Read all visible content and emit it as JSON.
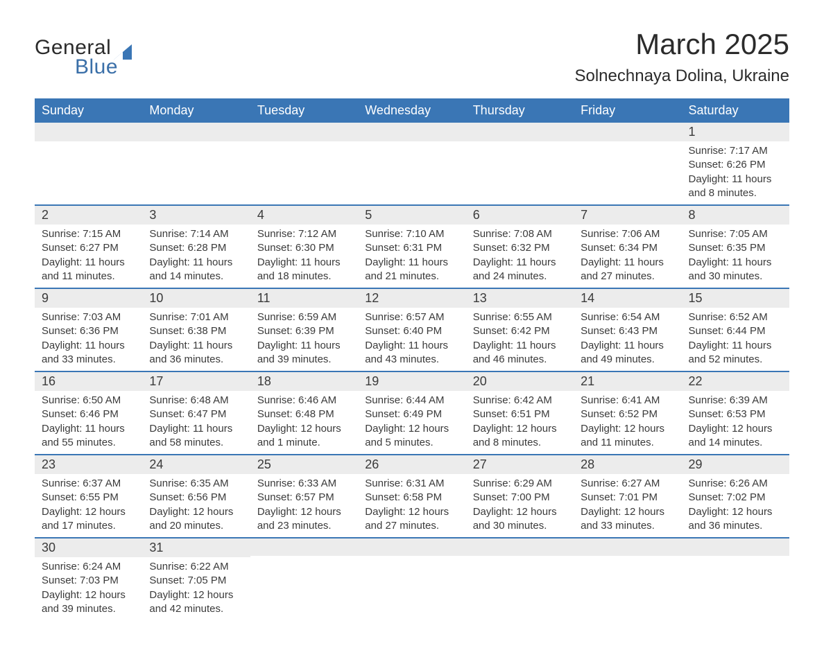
{
  "logo": {
    "general": "General",
    "blue": "Blue",
    "sail_color": "#3a76b5"
  },
  "title": "March 2025",
  "location": "Solnechnaya Dolina, Ukraine",
  "colors": {
    "header_bg": "#3a76b5",
    "header_text": "#ffffff",
    "daynum_bg": "#ececec",
    "row_border": "#3a76b5",
    "body_text": "#3a3a3a"
  },
  "day_labels": [
    "Sunday",
    "Monday",
    "Tuesday",
    "Wednesday",
    "Thursday",
    "Friday",
    "Saturday"
  ],
  "weeks": [
    [
      null,
      null,
      null,
      null,
      null,
      null,
      {
        "n": "1",
        "sr": "7:17 AM",
        "ss": "6:26 PM",
        "dl": "11 hours and 8 minutes."
      }
    ],
    [
      {
        "n": "2",
        "sr": "7:15 AM",
        "ss": "6:27 PM",
        "dl": "11 hours and 11 minutes."
      },
      {
        "n": "3",
        "sr": "7:14 AM",
        "ss": "6:28 PM",
        "dl": "11 hours and 14 minutes."
      },
      {
        "n": "4",
        "sr": "7:12 AM",
        "ss": "6:30 PM",
        "dl": "11 hours and 18 minutes."
      },
      {
        "n": "5",
        "sr": "7:10 AM",
        "ss": "6:31 PM",
        "dl": "11 hours and 21 minutes."
      },
      {
        "n": "6",
        "sr": "7:08 AM",
        "ss": "6:32 PM",
        "dl": "11 hours and 24 minutes."
      },
      {
        "n": "7",
        "sr": "7:06 AM",
        "ss": "6:34 PM",
        "dl": "11 hours and 27 minutes."
      },
      {
        "n": "8",
        "sr": "7:05 AM",
        "ss": "6:35 PM",
        "dl": "11 hours and 30 minutes."
      }
    ],
    [
      {
        "n": "9",
        "sr": "7:03 AM",
        "ss": "6:36 PM",
        "dl": "11 hours and 33 minutes."
      },
      {
        "n": "10",
        "sr": "7:01 AM",
        "ss": "6:38 PM",
        "dl": "11 hours and 36 minutes."
      },
      {
        "n": "11",
        "sr": "6:59 AM",
        "ss": "6:39 PM",
        "dl": "11 hours and 39 minutes."
      },
      {
        "n": "12",
        "sr": "6:57 AM",
        "ss": "6:40 PM",
        "dl": "11 hours and 43 minutes."
      },
      {
        "n": "13",
        "sr": "6:55 AM",
        "ss": "6:42 PM",
        "dl": "11 hours and 46 minutes."
      },
      {
        "n": "14",
        "sr": "6:54 AM",
        "ss": "6:43 PM",
        "dl": "11 hours and 49 minutes."
      },
      {
        "n": "15",
        "sr": "6:52 AM",
        "ss": "6:44 PM",
        "dl": "11 hours and 52 minutes."
      }
    ],
    [
      {
        "n": "16",
        "sr": "6:50 AM",
        "ss": "6:46 PM",
        "dl": "11 hours and 55 minutes."
      },
      {
        "n": "17",
        "sr": "6:48 AM",
        "ss": "6:47 PM",
        "dl": "11 hours and 58 minutes."
      },
      {
        "n": "18",
        "sr": "6:46 AM",
        "ss": "6:48 PM",
        "dl": "12 hours and 1 minute."
      },
      {
        "n": "19",
        "sr": "6:44 AM",
        "ss": "6:49 PM",
        "dl": "12 hours and 5 minutes."
      },
      {
        "n": "20",
        "sr": "6:42 AM",
        "ss": "6:51 PM",
        "dl": "12 hours and 8 minutes."
      },
      {
        "n": "21",
        "sr": "6:41 AM",
        "ss": "6:52 PM",
        "dl": "12 hours and 11 minutes."
      },
      {
        "n": "22",
        "sr": "6:39 AM",
        "ss": "6:53 PM",
        "dl": "12 hours and 14 minutes."
      }
    ],
    [
      {
        "n": "23",
        "sr": "6:37 AM",
        "ss": "6:55 PM",
        "dl": "12 hours and 17 minutes."
      },
      {
        "n": "24",
        "sr": "6:35 AM",
        "ss": "6:56 PM",
        "dl": "12 hours and 20 minutes."
      },
      {
        "n": "25",
        "sr": "6:33 AM",
        "ss": "6:57 PM",
        "dl": "12 hours and 23 minutes."
      },
      {
        "n": "26",
        "sr": "6:31 AM",
        "ss": "6:58 PM",
        "dl": "12 hours and 27 minutes."
      },
      {
        "n": "27",
        "sr": "6:29 AM",
        "ss": "7:00 PM",
        "dl": "12 hours and 30 minutes."
      },
      {
        "n": "28",
        "sr": "6:27 AM",
        "ss": "7:01 PM",
        "dl": "12 hours and 33 minutes."
      },
      {
        "n": "29",
        "sr": "6:26 AM",
        "ss": "7:02 PM",
        "dl": "12 hours and 36 minutes."
      }
    ],
    [
      {
        "n": "30",
        "sr": "6:24 AM",
        "ss": "7:03 PM",
        "dl": "12 hours and 39 minutes."
      },
      {
        "n": "31",
        "sr": "6:22 AM",
        "ss": "7:05 PM",
        "dl": "12 hours and 42 minutes."
      },
      null,
      null,
      null,
      null,
      null
    ]
  ],
  "labels": {
    "sunrise": "Sunrise: ",
    "sunset": "Sunset: ",
    "daylight": "Daylight: "
  }
}
